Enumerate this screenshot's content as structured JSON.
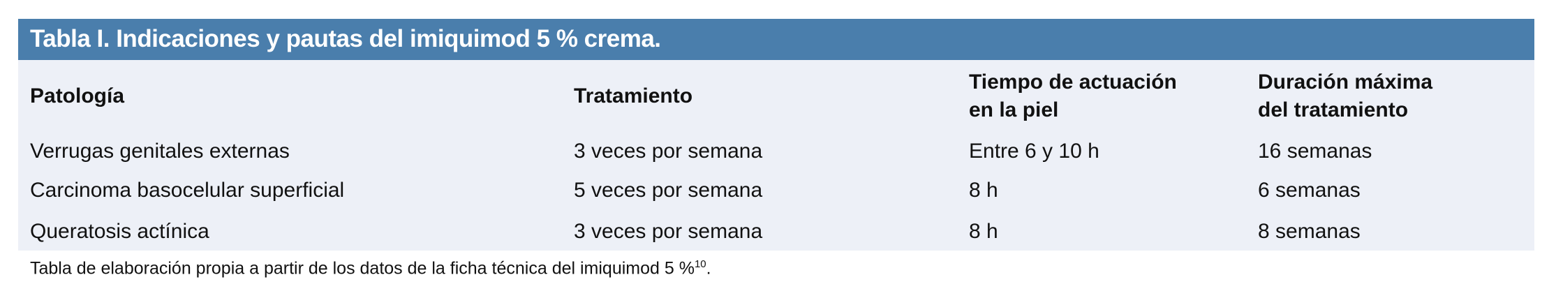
{
  "table": {
    "title": "Tabla I. Indicaciones y pautas del imiquimod 5 % crema.",
    "headers": [
      {
        "line1": "Patología",
        "line2": ""
      },
      {
        "line1": "Tratamiento",
        "line2": ""
      },
      {
        "line1": "Tiempo de actuación",
        "line2": "en la piel"
      },
      {
        "line1": "Duración máxima",
        "line2": "del tratamiento"
      }
    ],
    "rows": [
      [
        "Verrugas genitales externas",
        "3 veces por semana",
        "Entre 6 y 10 h",
        "16 semanas"
      ],
      [
        "Carcinoma basocelular superficial",
        "5 veces por semana",
        "8 h",
        "6 semanas"
      ],
      [
        "Queratosis actínica",
        "3 veces por semana",
        "8 h",
        "8 semanas"
      ]
    ],
    "footnote": "Tabla de elaboración propia a partir de los datos de la ficha técnica del imiquimod 5 %",
    "footnote_ref": "10",
    "footnote_end": ".",
    "colors": {
      "header_bar": "#4a7eac",
      "body_bg": "#edf0f7"
    }
  }
}
